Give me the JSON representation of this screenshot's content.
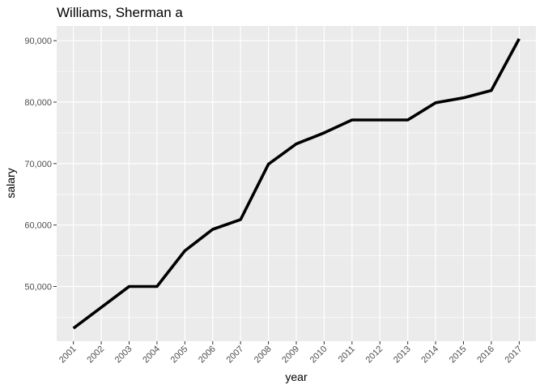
{
  "chart_data": {
    "type": "line",
    "title": "Williams, Sherman a",
    "xlabel": "year",
    "ylabel": "salary",
    "x": [
      "2001",
      "2002",
      "2003",
      "2004",
      "2005",
      "2006",
      "2007",
      "2008",
      "2009",
      "2010",
      "2011",
      "2012",
      "2013",
      "2014",
      "2015",
      "2016",
      "2017"
    ],
    "series": [
      {
        "values": [
          43200,
          46600,
          50000,
          50000,
          55800,
          59300,
          60900,
          69900,
          73200,
          75000,
          77100,
          77100,
          77100,
          79900,
          80700,
          81900,
          90300
        ],
        "color": "#000000"
      }
    ],
    "yticks": [
      50000,
      60000,
      70000,
      80000,
      90000
    ],
    "ytick_labels": [
      "50,000",
      "60,000",
      "70,000",
      "80,000",
      "90,000"
    ],
    "ylim": [
      41100,
      92400
    ],
    "grid": true,
    "panel_color": "#ebebeb",
    "grid_color": "#ffffff"
  }
}
